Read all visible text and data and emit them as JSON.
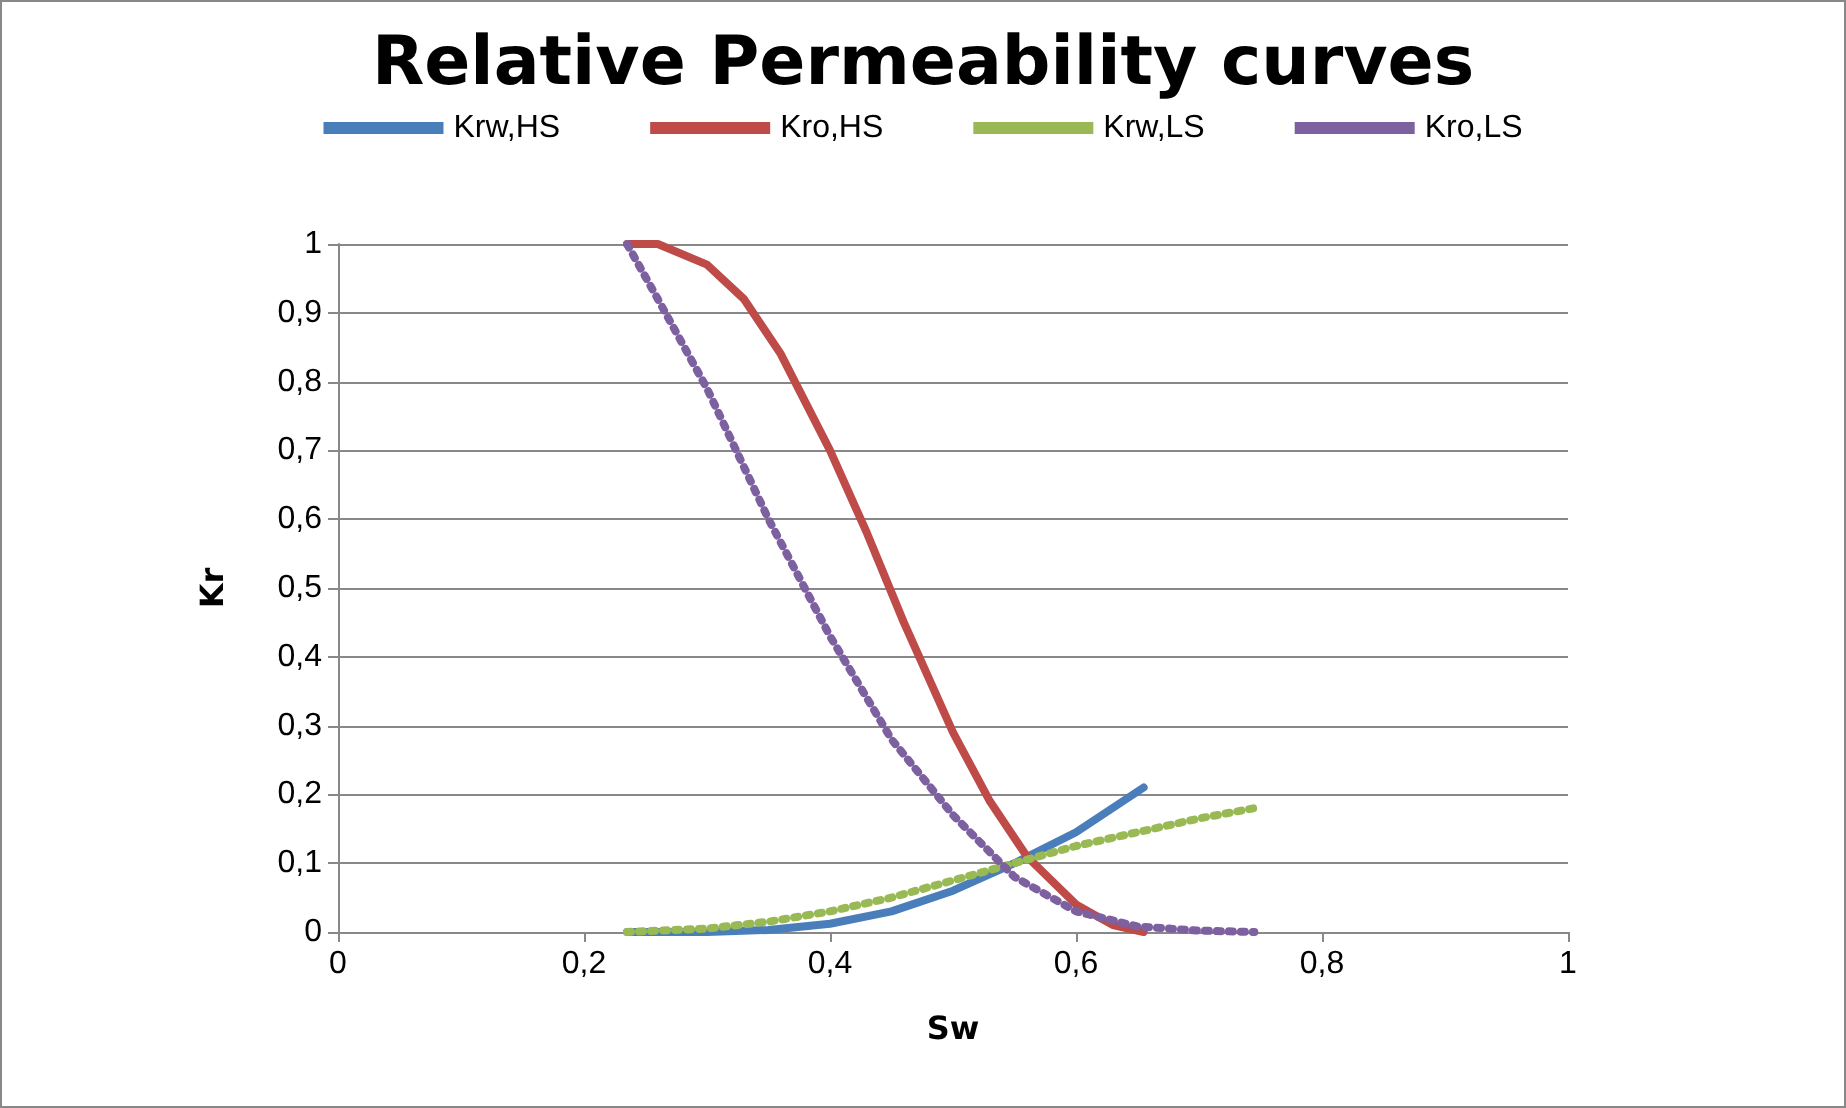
{
  "chart_data": {
    "type": "line",
    "title": "Relative Permeability curves",
    "xlabel": "Sw",
    "ylabel": "Kr",
    "xlim": [
      0,
      1
    ],
    "xticks": [
      0,
      {
        "value": 0.2,
        "label": "0,2"
      },
      {
        "value": 0.4,
        "label": "0,4"
      },
      {
        "value": 0.6,
        "label": "0,6"
      },
      {
        "value": 0.8,
        "label": "0,8"
      },
      1
    ],
    "ylim": [
      0,
      1
    ],
    "yticks": [
      0,
      {
        "value": 0.1,
        "label": "0,1"
      },
      {
        "value": 0.2,
        "label": "0,2"
      },
      {
        "value": 0.3,
        "label": "0,3"
      },
      {
        "value": 0.4,
        "label": "0,4"
      },
      {
        "value": 0.5,
        "label": "0,5"
      },
      {
        "value": 0.6,
        "label": "0,6"
      },
      {
        "value": 0.7,
        "label": "0,7"
      },
      {
        "value": 0.8,
        "label": "0,8"
      },
      {
        "value": 0.9,
        "label": "0,9"
      },
      1
    ],
    "grid": "y",
    "legend": "top",
    "marker": "none",
    "series": [
      {
        "name": "Krw,HS",
        "color": "#4a7ebb",
        "line_style": "solid",
        "x": [
          0.235,
          0.3,
          0.35,
          0.4,
          0.45,
          0.5,
          0.55,
          0.6,
          0.655
        ],
        "values": [
          0,
          0,
          0.003,
          0.012,
          0.03,
          0.06,
          0.1,
          0.145,
          0.21
        ]
      },
      {
        "name": "Kro,HS",
        "color": "#be4b48",
        "line_style": "solid",
        "x": [
          0.235,
          0.26,
          0.3,
          0.33,
          0.36,
          0.4,
          0.43,
          0.46,
          0.5,
          0.53,
          0.56,
          0.6,
          0.63,
          0.655
        ],
        "values": [
          1,
          1,
          0.97,
          0.92,
          0.84,
          0.7,
          0.58,
          0.45,
          0.29,
          0.19,
          0.11,
          0.04,
          0.01,
          0
        ]
      },
      {
        "name": "Krw,LS",
        "color": "#98b954",
        "line_style": "dotted",
        "x": [
          0.235,
          0.3,
          0.35,
          0.4,
          0.45,
          0.5,
          0.55,
          0.6,
          0.65,
          0.7,
          0.745
        ],
        "values": [
          0,
          0.005,
          0.015,
          0.03,
          0.05,
          0.075,
          0.1,
          0.125,
          0.145,
          0.165,
          0.18
        ]
      },
      {
        "name": "Kro,LS",
        "color": "#7d60a0",
        "line_style": "dotted",
        "x": [
          0.235,
          0.26,
          0.3,
          0.35,
          0.4,
          0.45,
          0.5,
          0.55,
          0.6,
          0.65,
          0.7,
          0.745
        ],
        "values": [
          1,
          0.92,
          0.79,
          0.6,
          0.43,
          0.28,
          0.17,
          0.08,
          0.03,
          0.008,
          0.002,
          0
        ]
      }
    ]
  }
}
